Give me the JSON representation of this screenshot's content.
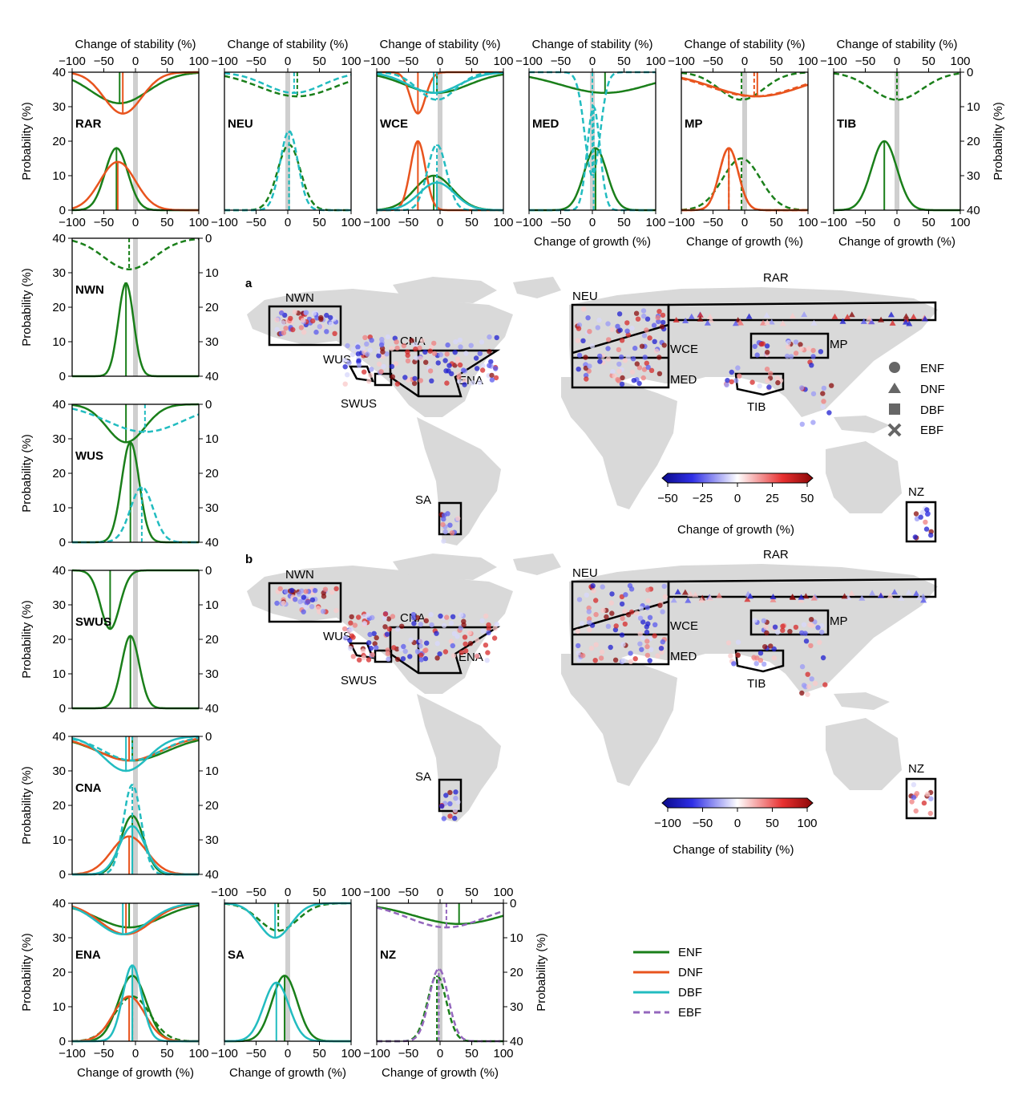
{
  "colors": {
    "ENF": "#1a7f1a",
    "DNF": "#e8541e",
    "DBF": "#22bcc0",
    "EBF": "#9467bd",
    "land": "#d9d9d9",
    "zero_band": "#cfcfcf"
  },
  "labels": {
    "stability_axis": "Change of stability (%)",
    "growth_axis": "Change of growth (%)",
    "probability_axis": "Probability (%)",
    "panel_a": "a",
    "panel_b": "b",
    "colorbar_a": "Change of growth (%)",
    "colorbar_b": "Change of stability (%)"
  },
  "axis_ticks": {
    "change_ticks": [
      -100,
      -50,
      0,
      50,
      100
    ],
    "probability_ticks": [
      0,
      10,
      20,
      30,
      40
    ],
    "probability_ticks_inverted": [
      40,
      30,
      20,
      10,
      0
    ],
    "colorbar_a_ticks": [
      -50,
      -25,
      0,
      25,
      50
    ],
    "colorbar_b_ticks": [
      -100,
      -50,
      0,
      50,
      100
    ]
  },
  "marker_legend": [
    {
      "name": "ENF",
      "shape": "circle"
    },
    {
      "name": "DNF",
      "shape": "triangle"
    },
    {
      "name": "DBF",
      "shape": "square"
    },
    {
      "name": "EBF",
      "shape": "cross"
    }
  ],
  "line_legend": [
    {
      "name": "ENF",
      "style": "solid"
    },
    {
      "name": "DNF",
      "style": "solid"
    },
    {
      "name": "DBF",
      "style": "solid"
    },
    {
      "name": "EBF",
      "style": "dashed"
    }
  ],
  "map_regions": [
    "NWN",
    "WUS",
    "SWUS",
    "CNA",
    "ENA",
    "SA",
    "NEU",
    "WCE",
    "MED",
    "RAR",
    "MP",
    "TIB",
    "NZ"
  ],
  "chart_data": [
    {
      "type": "line",
      "region": "RAR",
      "x_range": [
        -100,
        100
      ],
      "y_range": [
        0,
        40
      ],
      "series": [
        {
          "name": "ENF",
          "dashed": false,
          "growth_mean": -30,
          "growth_sd": 18,
          "growth_peak": 18,
          "stability_mean": -25,
          "stability_sd": 45,
          "stability_peak": 9
        },
        {
          "name": "DNF",
          "dashed": false,
          "growth_mean": -28,
          "growth_sd": 28,
          "growth_peak": 14,
          "stability_mean": -20,
          "stability_sd": 30,
          "stability_peak": 12
        }
      ]
    },
    {
      "type": "line",
      "region": "NEU",
      "x_range": [
        -100,
        100
      ],
      "y_range": [
        0,
        40
      ],
      "series": [
        {
          "name": "ENF",
          "dashed": true,
          "growth_mean": 2,
          "growth_sd": 18,
          "growth_peak": 19,
          "stability_mean": 15,
          "stability_sd": 60,
          "stability_peak": 7
        },
        {
          "name": "DBF",
          "dashed": true,
          "growth_mean": 2,
          "growth_sd": 14,
          "growth_peak": 23,
          "stability_mean": 10,
          "stability_sd": 45,
          "stability_peak": 6
        }
      ]
    },
    {
      "type": "line",
      "region": "WCE",
      "x_range": [
        -100,
        100
      ],
      "y_range": [
        0,
        40
      ],
      "series": [
        {
          "name": "ENF",
          "dashed": false,
          "growth_mean": -10,
          "growth_sd": 30,
          "growth_peak": 10,
          "stability_mean": -5,
          "stability_sd": 50,
          "stability_peak": 6
        },
        {
          "name": "DNF",
          "dashed": false,
          "growth_mean": -35,
          "growth_sd": 12,
          "growth_peak": 20,
          "stability_mean": -35,
          "stability_sd": 12,
          "stability_peak": 12
        },
        {
          "name": "DBF",
          "dashed": false,
          "growth_mean": -5,
          "growth_sd": 28,
          "growth_peak": 8,
          "stability_mean": -10,
          "stability_sd": 40,
          "stability_peak": 6
        },
        {
          "name": "DBF",
          "dashed": true,
          "growth_mean": -5,
          "growth_sd": 15,
          "growth_peak": 19,
          "stability_mean": -5,
          "stability_sd": 30,
          "stability_peak": 8
        }
      ]
    },
    {
      "type": "line",
      "region": "MED",
      "x_range": [
        -100,
        100
      ],
      "y_range": [
        0,
        40
      ],
      "series": [
        {
          "name": "ENF",
          "dashed": false,
          "growth_mean": 5,
          "growth_sd": 18,
          "growth_peak": 18,
          "stability_mean": 20,
          "stability_sd": 70,
          "stability_peak": 6
        },
        {
          "name": "DBF",
          "dashed": true,
          "growth_mean": 2,
          "growth_sd": 10,
          "growth_peak": 30,
          "stability_mean": 0,
          "stability_sd": 12,
          "stability_peak": 30
        }
      ]
    },
    {
      "type": "line",
      "region": "MP",
      "x_range": [
        -100,
        100
      ],
      "y_range": [
        0,
        40
      ],
      "series": [
        {
          "name": "ENF",
          "dashed": true,
          "growth_mean": -5,
          "growth_sd": 30,
          "growth_peak": 15,
          "stability_mean": -5,
          "stability_sd": 35,
          "stability_peak": 8
        },
        {
          "name": "DNF",
          "dashed": false,
          "growth_mean": -25,
          "growth_sd": 15,
          "growth_peak": 18,
          "stability_mean": 20,
          "stability_sd": 70,
          "stability_peak": 7
        },
        {
          "name": "DNF",
          "dashed": true,
          "growth_mean": -25,
          "growth_sd": 15,
          "growth_peak": 18,
          "stability_mean": 15,
          "stability_sd": 70,
          "stability_peak": 7
        }
      ]
    },
    {
      "type": "line",
      "region": "TIB",
      "x_range": [
        -100,
        100
      ],
      "y_range": [
        0,
        40
      ],
      "series": [
        {
          "name": "ENF",
          "dashed": false,
          "growth_mean": -20,
          "growth_sd": 20,
          "growth_peak": 20
        },
        {
          "name": "ENF",
          "dashed": true,
          "stability_mean": 0,
          "stability_sd": 40,
          "stability_peak": 8
        }
      ]
    },
    {
      "type": "line",
      "region": "NWN",
      "x_range": [
        -100,
        100
      ],
      "y_range": [
        0,
        40
      ],
      "series": [
        {
          "name": "ENF",
          "dashed": false,
          "growth_mean": -15,
          "growth_sd": 12,
          "growth_peak": 27
        },
        {
          "name": "ENF",
          "dashed": true,
          "stability_mean": -10,
          "stability_sd": 40,
          "stability_peak": 9
        }
      ]
    },
    {
      "type": "line",
      "region": "WUS",
      "x_range": [
        -100,
        100
      ],
      "y_range": [
        0,
        40
      ],
      "series": [
        {
          "name": "ENF",
          "dashed": false,
          "growth_mean": -8,
          "growth_sd": 14,
          "growth_peak": 29,
          "stability_mean": -15,
          "stability_sd": 30,
          "stability_peak": 11
        },
        {
          "name": "DBF",
          "dashed": true,
          "growth_mean": 10,
          "growth_sd": 18,
          "growth_peak": 16,
          "stability_mean": 15,
          "stability_sd": 60,
          "stability_peak": 8
        }
      ]
    },
    {
      "type": "line",
      "region": "SWUS",
      "x_range": [
        -100,
        100
      ],
      "y_range": [
        0,
        40
      ],
      "series": [
        {
          "name": "ENF",
          "dashed": false,
          "growth_mean": -8,
          "growth_sd": 14,
          "growth_peak": 21,
          "stability_mean": -40,
          "stability_sd": 15,
          "stability_peak": 17
        }
      ]
    },
    {
      "type": "line",
      "region": "CNA",
      "x_range": [
        -100,
        100
      ],
      "y_range": [
        0,
        40
      ],
      "series": [
        {
          "name": "ENF",
          "dashed": false,
          "growth_mean": -5,
          "growth_sd": 18,
          "growth_peak": 17,
          "stability_mean": -5,
          "stability_sd": 55,
          "stability_peak": 7
        },
        {
          "name": "DNF",
          "dashed": false,
          "growth_mean": -10,
          "growth_sd": 28,
          "growth_peak": 11,
          "stability_mean": -10,
          "stability_sd": 50,
          "stability_peak": 7
        },
        {
          "name": "DBF",
          "dashed": true,
          "growth_mean": -5,
          "growth_sd": 14,
          "growth_peak": 26,
          "stability_mean": -5,
          "stability_sd": 45,
          "stability_peak": 7
        },
        {
          "name": "DBF",
          "dashed": false,
          "growth_mean": -5,
          "growth_sd": 20,
          "growth_peak": 14,
          "stability_mean": -15,
          "stability_sd": 35,
          "stability_peak": 10
        }
      ]
    },
    {
      "type": "line",
      "region": "ENA",
      "x_range": [
        -100,
        100
      ],
      "y_range": [
        0,
        40
      ],
      "series": [
        {
          "name": "ENF",
          "dashed": false,
          "growth_mean": -5,
          "growth_sd": 22,
          "growth_peak": 19,
          "stability_mean": -10,
          "stability_sd": 50,
          "stability_peak": 7
        },
        {
          "name": "ENF",
          "dashed": true,
          "growth_mean": -5,
          "growth_sd": 28,
          "growth_peak": 13
        },
        {
          "name": "DNF",
          "dashed": false,
          "growth_mean": -10,
          "growth_sd": 25,
          "growth_peak": 13,
          "stability_mean": -15,
          "stability_sd": 40,
          "stability_peak": 9
        },
        {
          "name": "DBF",
          "dashed": false,
          "growth_mean": -5,
          "growth_sd": 15,
          "growth_peak": 22,
          "stability_mean": -20,
          "stability_sd": 40,
          "stability_peak": 9
        }
      ]
    },
    {
      "type": "line",
      "region": "SA",
      "x_range": [
        -100,
        100
      ],
      "y_range": [
        0,
        40
      ],
      "series": [
        {
          "name": "ENF",
          "dashed": false,
          "growth_mean": -5,
          "growth_sd": 20,
          "growth_peak": 19
        },
        {
          "name": "ENF",
          "dashed": true,
          "stability_mean": -15,
          "stability_sd": 30,
          "stability_peak": 8
        },
        {
          "name": "DBF",
          "dashed": false,
          "growth_mean": -18,
          "growth_sd": 20,
          "growth_peak": 17,
          "stability_mean": -20,
          "stability_sd": 25,
          "stability_peak": 10
        }
      ]
    },
    {
      "type": "line",
      "region": "NZ",
      "x_range": [
        -100,
        100
      ],
      "y_range": [
        0,
        40
      ],
      "series": [
        {
          "name": "ENF",
          "dashed": false,
          "stability_mean": 30,
          "stability_sd": 70,
          "stability_peak": 6
        },
        {
          "name": "ENF",
          "dashed": true,
          "growth_mean": -5,
          "growth_sd": 15,
          "growth_peak": 19
        },
        {
          "name": "EBF",
          "dashed": true,
          "growth_mean": -2,
          "growth_sd": 15,
          "growth_peak": 21,
          "stability_mean": 10,
          "stability_sd": 60,
          "stability_peak": 7
        }
      ]
    }
  ]
}
